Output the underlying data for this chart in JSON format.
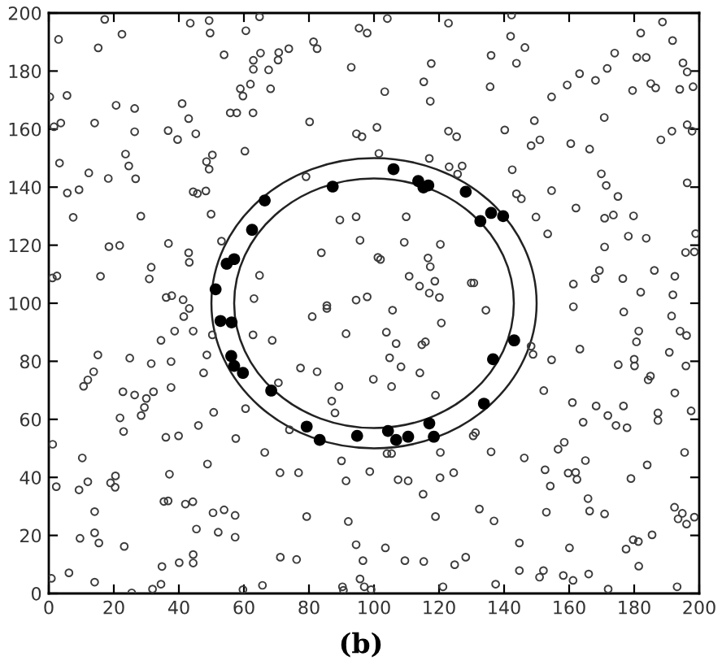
{
  "chart_data": {
    "type": "scatter",
    "annotations": [
      "(b)"
    ],
    "xlim": [
      0,
      200
    ],
    "ylim": [
      0,
      200
    ],
    "xticks": [
      0,
      20,
      40,
      60,
      80,
      100,
      120,
      140,
      160,
      180,
      200
    ],
    "yticks": [
      0,
      20,
      40,
      60,
      80,
      100,
      120,
      140,
      160,
      180,
      200
    ],
    "series": [
      {
        "color": "#3c3c3c",
        "marker": "circle",
        "x": [
          17.2,
          3.0,
          22.5,
          15.2,
          0.3,
          5.6,
          20.7,
          26.4,
          1.6,
          3.7,
          14.1,
          26.4,
          3.3,
          23.6,
          24.6,
          12.3,
          26.7,
          18.3,
          5.7,
          9.3,
          7.5,
          28.3,
          18.5,
          21.8,
          31.5,
          1.1,
          2.5,
          15.9,
          30.9,
          36.1,
          37.8,
          36.8,
          41.0,
          43.0,
          45.2,
          39.6,
          36.7,
          50.3,
          48.5,
          49.3,
          44.4,
          45.7,
          48.3,
          49.9,
          43.0,
          43.2,
          41.3,
          43.2,
          41.5,
          43.5,
          49.3,
          49.6,
          53.9,
          60.6,
          62.9,
          62.9,
          58.9,
          59.7,
          62.0,
          55.8,
          57.8,
          62.8,
          60.3,
          53.1,
          63.1,
          64.8,
          95.4,
          97.9,
          104.1,
          122.9,
          81.4,
          82.5,
          65.1,
          70.7,
          70.5,
          73.8,
          67.6,
          93.0,
          117.6,
          115.3,
          68.2,
          103.3,
          117.3,
          80.2,
          94.6,
          96.3,
          100.9,
          122.9,
          125.4,
          101.5,
          117.0,
          123.1,
          127.1,
          125.7,
          79.1,
          89.5,
          94.5,
          109.9,
          95.7,
          109.3,
          83.8,
          101.2,
          102.0,
          120.4,
          116.6,
          117.3,
          110.8,
          114.0,
          118.7,
          129.9,
          130.7,
          117.0,
          120.1,
          64.8,
          85.5,
          85.5,
          94.5,
          97.9,
          81.0,
          105.7,
          120.7,
          142.3,
          188.7,
          142.0,
          146.4,
          136.0,
          143.8,
          182.0,
          191.8,
          174.0,
          180.8,
          183.7,
          195.0,
          196.3,
          171.7,
          163.2,
          168.1,
          159.4,
          135.7,
          185.1,
          186.6,
          179.5,
          194.0,
          198.1,
          154.6,
          149.3,
          170.8,
          140.2,
          151.0,
          148.3,
          160.5,
          166.3,
          188.2,
          191.6,
          196.3,
          197.8,
          142.5,
          169.9,
          171.4,
          196.3,
          154.6,
          143.8,
          145.3,
          175.0,
          162.1,
          149.8,
          170.9,
          173.6,
          179.8,
          153.4,
          178.2,
          183.7,
          170.9,
          198.9,
          195.8,
          198.5,
          169.3,
          168.0,
          186.2,
          161.3,
          176.5,
          192.5,
          182.0,
          191.9,
          134.4,
          161.3,
          176.8,
          191.5,
          38.7,
          44.4,
          50.3,
          62.8,
          34.5,
          15.1,
          24.9,
          31.5,
          37.6,
          48.6,
          47.6,
          10.7,
          12.0,
          13.8,
          37.6,
          22.8,
          26.4,
          32.2,
          30.0,
          29.4,
          28.4,
          21.9,
          23.0,
          50.7,
          46.0,
          36.0,
          39.9,
          57.5,
          60.5,
          1.2,
          10.3,
          48.8,
          37.1,
          20.5,
          19.0,
          20.4,
          12.0,
          2.3,
          9.3,
          35.4,
          36.7,
          42.0,
          44.3,
          14.1,
          50.5,
          53.9,
          57.3,
          57.3,
          52.1,
          45.4,
          14.1,
          9.6,
          15.4,
          23.2,
          44.4,
          44.4,
          40.1,
          34.8,
          6.2,
          0.8,
          14.1,
          34.5,
          31.9,
          25.5,
          59.7,
          68.7,
          91.4,
          103.8,
          106.8,
          114.7,
          115.8,
          104.8,
          108.3,
          77.4,
          82.5,
          114.1,
          99.8,
          105.4,
          89.2,
          118.9,
          87.0,
          88.0,
          70.6,
          74.0,
          130.5,
          131.2,
          104.0,
          105.4,
          90.0,
          120.4,
          66.4,
          71.1,
          76.8,
          91.4,
          98.7,
          107.4,
          110.5,
          120.3,
          124.5,
          115.1,
          132.4,
          79.3,
          92.1,
          118.9,
          94.5,
          103.5,
          71.2,
          76.2,
          96.6,
          109.5,
          115.3,
          128.2,
          124.8,
          95.7,
          65.7,
          90.3,
          90.6,
          97.0,
          99.1,
          121.2,
          181.4,
          194.1,
          196.1,
          148.3,
          148.9,
          163.3,
          180.7,
          180.0,
          180.1,
          175.1,
          154.6,
          190.8,
          195.9,
          185.0,
          184.3,
          152.2,
          192.5,
          161.0,
          168.3,
          171.9,
          176.7,
          187.3,
          187.3,
          197.5,
          164.3,
          174.4,
          177.8,
          136.0,
          158.5,
          156.6,
          146.2,
          165.0,
          195.5,
          152.6,
          159.7,
          162.0,
          162.4,
          154.2,
          179.0,
          184.0,
          165.8,
          166.3,
          153.0,
          170.9,
          136.9,
          192.4,
          194.8,
          193.5,
          198.5,
          196.1,
          185.5,
          179.7,
          181.3,
          177.5,
          160.1,
          144.7,
          181.4,
          144.7,
          152.1,
          150.9,
          158.2,
          161.2,
          166.0,
          172.0,
          193.2,
          137.4
        ],
        "values": [
          197.8,
          190.9,
          192.7,
          188.0,
          171.1,
          171.6,
          168.2,
          167.1,
          160.8,
          162.1,
          162.1,
          159.1,
          148.3,
          151.4,
          147.3,
          144.9,
          142.9,
          143.0,
          138.0,
          139.1,
          129.6,
          130.0,
          119.5,
          119.9,
          112.4,
          108.7,
          109.4,
          109.3,
          108.4,
          102.0,
          102.6,
          120.6,
          168.8,
          163.6,
          158.4,
          156.4,
          159.5,
          151.1,
          148.8,
          146.2,
          138.4,
          137.8,
          138.7,
          130.7,
          117.4,
          114.1,
          101.2,
          98.2,
          95.4,
          196.5,
          197.4,
          193.1,
          185.6,
          193.9,
          183.7,
          180.6,
          173.9,
          171.4,
          175.5,
          165.6,
          165.6,
          165.6,
          152.4,
          121.4,
          101.6,
          198.7,
          194.8,
          193.1,
          198.1,
          196.5,
          190.1,
          187.7,
          186.2,
          186.4,
          183.8,
          187.7,
          180.4,
          181.3,
          182.6,
          176.3,
          173.9,
          172.9,
          169.6,
          162.5,
          158.4,
          157.4,
          160.6,
          159.3,
          157.4,
          151.6,
          149.9,
          147.0,
          147.3,
          144.5,
          143.6,
          128.7,
          129.8,
          129.8,
          121.7,
          121.0,
          117.4,
          115.8,
          115.1,
          120.3,
          115.6,
          112.6,
          109.3,
          105.9,
          107.6,
          107.0,
          107.0,
          103.5,
          102.0,
          109.6,
          99.2,
          98.2,
          101.1,
          102.2,
          95.4,
          97.6,
          93.2,
          199.3,
          196.9,
          192.0,
          188.1,
          185.4,
          182.7,
          193.1,
          190.5,
          186.2,
          184.7,
          184.7,
          182.8,
          179.7,
          180.9,
          179.1,
          176.8,
          175.2,
          174.6,
          175.7,
          174.2,
          173.3,
          173.7,
          174.6,
          171.1,
          162.9,
          164.0,
          159.7,
          156.3,
          154.3,
          155.0,
          153.1,
          156.3,
          159.3,
          161.5,
          159.3,
          146.0,
          144.6,
          140.6,
          141.5,
          138.8,
          137.7,
          136.0,
          136.8,
          132.8,
          129.7,
          129.3,
          130.4,
          130.1,
          123.9,
          123.1,
          122.4,
          119.4,
          124.0,
          117.5,
          117.7,
          111.3,
          108.5,
          111.3,
          106.6,
          108.5,
          109.3,
          103.8,
          102.9,
          97.6,
          98.8,
          97.0,
          95.6,
          90.4,
          90.4,
          89.1,
          89.1,
          87.2,
          82.2,
          81.1,
          79.2,
          79.9,
          82.2,
          76.0,
          71.4,
          73.6,
          76.4,
          71.0,
          69.5,
          68.4,
          69.5,
          67.2,
          64.1,
          61.3,
          60.5,
          55.8,
          62.4,
          57.9,
          53.8,
          54.3,
          53.4,
          63.7,
          51.4,
          46.7,
          44.6,
          41.1,
          40.5,
          38.1,
          36.6,
          38.5,
          36.8,
          35.7,
          31.7,
          31.9,
          30.8,
          31.6,
          28.2,
          27.8,
          28.8,
          26.9,
          19.4,
          21.1,
          22.2,
          20.9,
          19.0,
          17.4,
          16.2,
          13.4,
          10.5,
          10.6,
          9.3,
          7.1,
          5.2,
          3.9,
          3.2,
          1.5,
          0.2,
          1.3,
          87.2,
          89.5,
          90.0,
          86.1,
          85.7,
          86.7,
          81.2,
          78.1,
          77.7,
          76.4,
          76.0,
          73.8,
          71.3,
          71.3,
          68.3,
          66.3,
          62.2,
          72.6,
          56.4,
          54.3,
          55.4,
          48.2,
          48.2,
          45.7,
          48.6,
          48.6,
          41.6,
          41.6,
          38.8,
          42.0,
          39.2,
          38.8,
          39.9,
          41.6,
          34.2,
          29.1,
          26.5,
          24.8,
          26.5,
          16.8,
          15.7,
          12.5,
          11.7,
          11.3,
          11.3,
          11.0,
          12.5,
          9.9,
          5.0,
          2.8,
          2.3,
          1.1,
          2.3,
          1.3,
          2.3,
          90.4,
          90.4,
          88.9,
          85.2,
          82.4,
          84.2,
          86.7,
          80.7,
          78.4,
          78.8,
          80.5,
          83.1,
          78.4,
          74.9,
          73.6,
          69.9,
          69.1,
          65.8,
          64.6,
          61.3,
          64.6,
          62.2,
          59.6,
          62.9,
          59.0,
          57.9,
          57.1,
          48.8,
          52.1,
          49.7,
          46.7,
          45.8,
          48.6,
          42.6,
          41.5,
          41.7,
          39.3,
          37.0,
          39.6,
          44.3,
          32.7,
          28.4,
          28.0,
          27.4,
          25.0,
          29.7,
          27.6,
          25.7,
          26.3,
          23.9,
          20.2,
          18.5,
          17.9,
          15.3,
          15.7,
          17.4,
          9.4,
          7.9,
          7.9,
          5.6,
          6.2,
          4.5,
          6.7,
          1.5,
          2.3,
          3.2
        ]
      },
      {
        "color": "#000000",
        "marker": "circle",
        "x": [
          62.5,
          54.7,
          57.0,
          51.3,
          52.8,
          56.2,
          66.4,
          87.3,
          106.0,
          113.6,
          115.2,
          116.7,
          128.2,
          132.7,
          136.0,
          139.7,
          56.1,
          57.0,
          59.7,
          68.4,
          79.3,
          83.3,
          94.8,
          104.3,
          106.8,
          110.5,
          117.0,
          118.4,
          133.8,
          143.1,
          136.6
        ],
        "values": [
          125.3,
          113.6,
          115.2,
          104.8,
          93.9,
          93.4,
          135.4,
          140.2,
          146.2,
          142.1,
          139.9,
          140.6,
          138.4,
          128.3,
          131.1,
          130.0,
          81.8,
          78.4,
          76.0,
          69.9,
          57.5,
          52.9,
          54.3,
          56.0,
          52.9,
          54.0,
          58.6,
          54.0,
          65.4,
          87.2,
          80.7
        ]
      }
    ]
  }
}
